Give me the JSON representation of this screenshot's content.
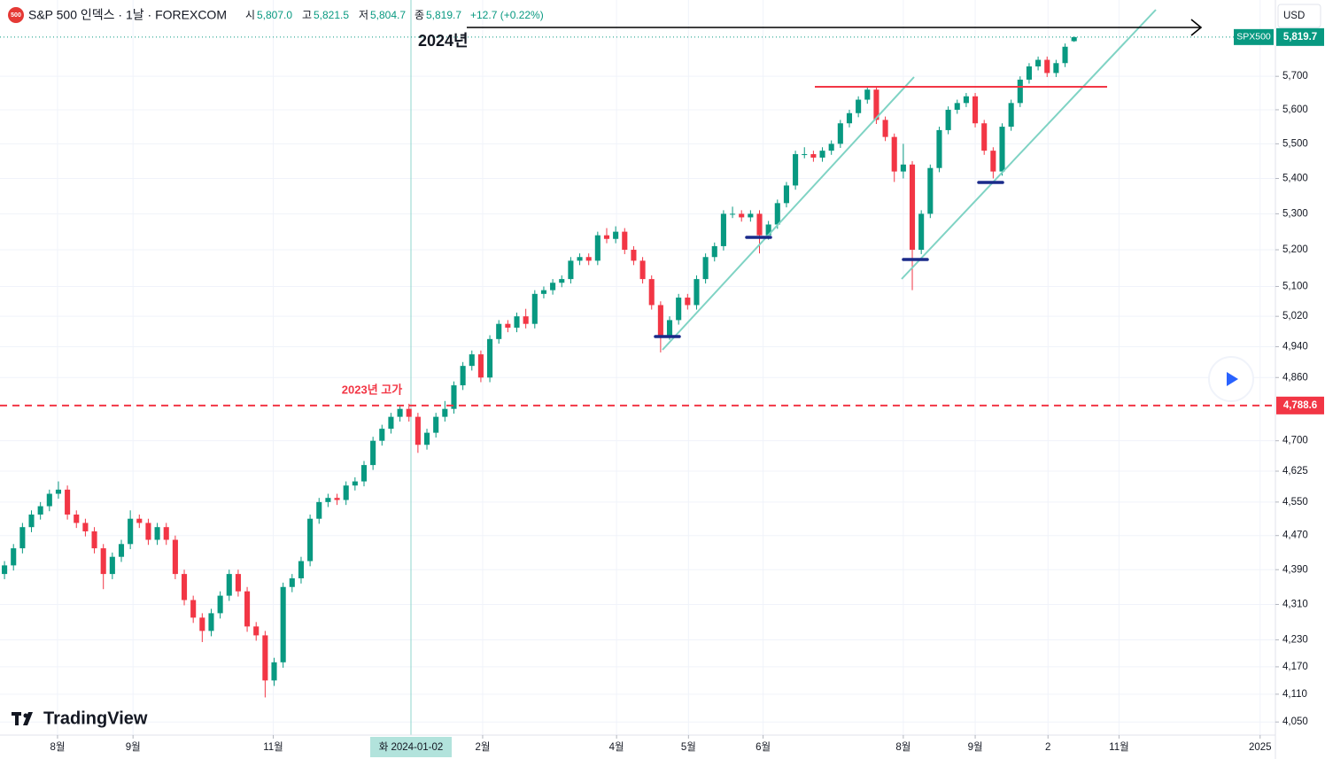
{
  "header": {
    "symbol": "S&P 500 인덱스 · 1날 · FOREXCOM",
    "icon": "500",
    "o_key": "시",
    "o": "5,807.0",
    "h_key": "고",
    "h": "5,821.5",
    "l_key": "저",
    "l": "5,804.7",
    "c_key": "종",
    "c": "5,819.7",
    "change": "+12.7 (+0.22%)"
  },
  "currency": "USD",
  "brand": "TradingView",
  "annotations": {
    "year": "2024년",
    "prev_high": "2023년 고가"
  },
  "crosshair_label": "화 2024-01-02",
  "chart_data": {
    "type": "candlestick",
    "log_scale": true,
    "grid": true,
    "up_color": "#089981",
    "down_color": "#f23645",
    "ylim": [
      4022,
      5935
    ],
    "xlim": [
      -0.5,
      141.4
    ],
    "yticks": [
      {
        "value": 4050,
        "label": "4,050"
      },
      {
        "value": 4110,
        "label": "4,110"
      },
      {
        "value": 4170,
        "label": "4,170"
      },
      {
        "value": 4230,
        "label": "4,230"
      },
      {
        "value": 4310,
        "label": "4,310"
      },
      {
        "value": 4390,
        "label": "4,390"
      },
      {
        "value": 4470,
        "label": "4,470"
      },
      {
        "value": 4550,
        "label": "4,550"
      },
      {
        "value": 4625,
        "label": "4,625"
      },
      {
        "value": 4700,
        "label": "4,700"
      },
      {
        "value": 4860,
        "label": "4,860"
      },
      {
        "value": 4940,
        "label": "4,940"
      },
      {
        "value": 5020,
        "label": "5,020"
      },
      {
        "value": 5100,
        "label": "5,100"
      },
      {
        "value": 5200,
        "label": "5,200"
      },
      {
        "value": 5300,
        "label": "5,300"
      },
      {
        "value": 5400,
        "label": "5,400"
      },
      {
        "value": 5500,
        "label": "5,500"
      },
      {
        "value": 5600,
        "label": "5,600"
      },
      {
        "value": 5700,
        "label": "5,700"
      }
    ],
    "xticks": [
      {
        "value": 5.9,
        "label": "8월"
      },
      {
        "value": 14.3,
        "label": "9월"
      },
      {
        "value": 29.9,
        "label": "11월"
      },
      {
        "value": 53.2,
        "label": "2월"
      },
      {
        "value": 68.1,
        "label": "4월"
      },
      {
        "value": 76.1,
        "label": "5월"
      },
      {
        "value": 84.4,
        "label": "6월"
      },
      {
        "value": 100.0,
        "label": "8월"
      },
      {
        "value": 108.0,
        "label": "9월"
      },
      {
        "value": 116.1,
        "label": "2"
      },
      {
        "value": 124.0,
        "label": "11월"
      },
      {
        "value": 139.7,
        "label": "2025"
      }
    ],
    "hline": {
      "value": 4788.6,
      "label": "4,788.6",
      "color": "#f23645"
    },
    "last_price": {
      "value": 5819.7,
      "label": "5,819.7",
      "name": "SPX500",
      "color": "#089981"
    },
    "open": [
      4380,
      4400,
      4440,
      4490,
      4520,
      4540,
      4570,
      4580,
      4520,
      4500,
      4480,
      4440,
      4380,
      4420,
      4450,
      4510,
      4500,
      4460,
      4490,
      4460,
      4380,
      4320,
      4280,
      4250,
      4290,
      4330,
      4380,
      4340,
      4260,
      4240,
      4140,
      4180,
      4350,
      4370,
      4410,
      4510,
      4550,
      4560,
      4555,
      4590,
      4600,
      4640,
      4700,
      4730,
      4760,
      4780,
      4760,
      4690,
      4720,
      4760,
      4780,
      4840,
      4890,
      4920,
      4860,
      4960,
      5000,
      4990,
      5020,
      5000,
      5080,
      5090,
      5110,
      5120,
      5170,
      5180,
      5170,
      5240,
      5230,
      5250,
      5200,
      5170,
      5120,
      5050,
      4970,
      5010,
      5070,
      5050,
      5120,
      5180,
      5210,
      5300,
      5300,
      5290,
      5300,
      5240,
      5270,
      5330,
      5380,
      5470,
      5470,
      5460,
      5480,
      5500,
      5560,
      5590,
      5630,
      5660,
      5570,
      5520,
      5420,
      5440,
      5200,
      5300,
      5430,
      5540,
      5600,
      5620,
      5640,
      5560,
      5480,
      5420,
      5550,
      5620,
      5690,
      5730,
      5750,
      5710,
      5740,
      5807.0
    ],
    "high": [
      4410,
      4450,
      4500,
      4530,
      4550,
      4580,
      4600,
      4590,
      4530,
      4510,
      4490,
      4450,
      4430,
      4460,
      4530,
      4520,
      4510,
      4500,
      4500,
      4470,
      4390,
      4330,
      4290,
      4300,
      4340,
      4390,
      4390,
      4350,
      4270,
      4250,
      4190,
      4360,
      4380,
      4420,
      4520,
      4560,
      4570,
      4570,
      4600,
      4610,
      4650,
      4710,
      4740,
      4770,
      4790,
      4793,
      4770,
      4730,
      4770,
      4800,
      4850,
      4900,
      4930,
      4930,
      4970,
      5010,
      5010,
      5030,
      5040,
      5090,
      5100,
      5120,
      5130,
      5180,
      5190,
      5190,
      5250,
      5260,
      5265,
      5260,
      5210,
      5180,
      5130,
      5060,
      5020,
      5080,
      5080,
      5130,
      5190,
      5220,
      5310,
      5320,
      5310,
      5310,
      5310,
      5280,
      5340,
      5390,
      5480,
      5490,
      5480,
      5490,
      5510,
      5570,
      5600,
      5640,
      5670,
      5670,
      5580,
      5530,
      5500,
      5450,
      5310,
      5440,
      5550,
      5610,
      5630,
      5650,
      5650,
      5570,
      5490,
      5560,
      5630,
      5700,
      5740,
      5760,
      5760,
      5750,
      5800,
      5821.5
    ],
    "low": [
      4368,
      4388,
      4428,
      4478,
      4508,
      4528,
      4558,
      4508,
      4488,
      4468,
      4428,
      4345,
      4368,
      4408,
      4438,
      4488,
      4448,
      4448,
      4448,
      4368,
      4308,
      4268,
      4225,
      4238,
      4278,
      4318,
      4328,
      4248,
      4228,
      4103,
      4128,
      4168,
      4338,
      4358,
      4398,
      4498,
      4538,
      4543,
      4543,
      4578,
      4588,
      4628,
      4688,
      4718,
      4748,
      4748,
      4670,
      4678,
      4708,
      4748,
      4768,
      4828,
      4878,
      4848,
      4848,
      4948,
      4978,
      4978,
      4988,
      4988,
      5068,
      5078,
      5098,
      5108,
      5158,
      5158,
      5158,
      5218,
      5218,
      5188,
      5158,
      5108,
      5038,
      4925,
      4958,
      4998,
      5038,
      5038,
      5108,
      5168,
      5198,
      5288,
      5278,
      5278,
      5190,
      5228,
      5258,
      5318,
      5368,
      5458,
      5448,
      5448,
      5468,
      5488,
      5548,
      5578,
      5618,
      5558,
      5508,
      5390,
      5400,
      5090,
      5188,
      5288,
      5418,
      5528,
      5588,
      5608,
      5548,
      5468,
      5400,
      5408,
      5538,
      5608,
      5678,
      5718,
      5698,
      5698,
      5728,
      5804.7
    ],
    "close": [
      4400,
      4440,
      4490,
      4520,
      4540,
      4570,
      4580,
      4520,
      4500,
      4480,
      4440,
      4380,
      4420,
      4450,
      4510,
      4500,
      4460,
      4490,
      4460,
      4380,
      4320,
      4280,
      4250,
      4290,
      4330,
      4380,
      4340,
      4260,
      4240,
      4140,
      4180,
      4350,
      4370,
      4410,
      4510,
      4550,
      4560,
      4555,
      4590,
      4600,
      4640,
      4700,
      4730,
      4760,
      4780,
      4760,
      4690,
      4720,
      4760,
      4780,
      4840,
      4890,
      4920,
      4860,
      4960,
      5000,
      4990,
      5020,
      5000,
      5080,
      5090,
      5110,
      5120,
      5170,
      5180,
      5170,
      5240,
      5230,
      5250,
      5200,
      5170,
      5120,
      5050,
      4970,
      5010,
      5070,
      5050,
      5120,
      5180,
      5210,
      5300,
      5300,
      5290,
      5300,
      5240,
      5270,
      5330,
      5380,
      5470,
      5470,
      5460,
      5480,
      5500,
      5560,
      5590,
      5630,
      5660,
      5570,
      5520,
      5420,
      5440,
      5200,
      5300,
      5430,
      5540,
      5600,
      5620,
      5640,
      5560,
      5480,
      5420,
      5550,
      5620,
      5690,
      5730,
      5750,
      5710,
      5740,
      5790,
      5819.7
    ]
  }
}
